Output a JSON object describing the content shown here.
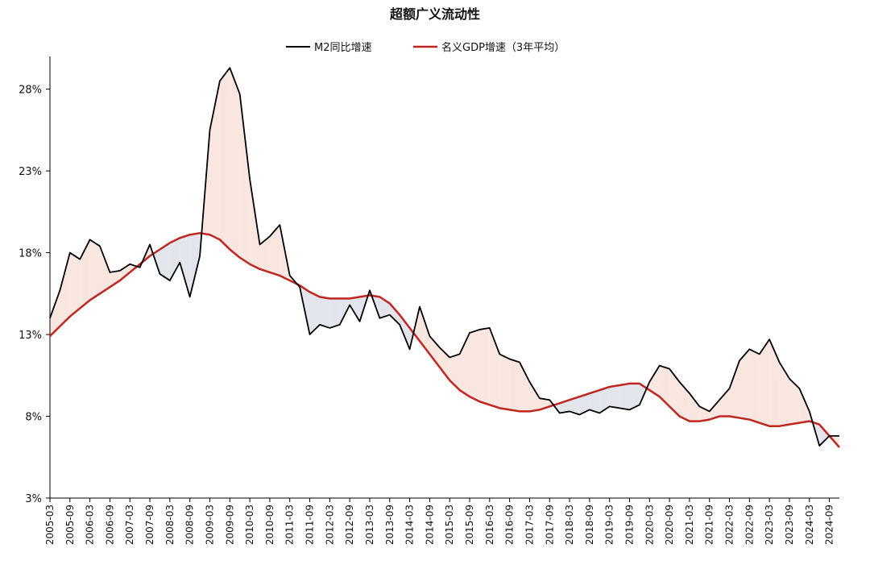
{
  "chart_data": {
    "type": "line",
    "title": "超额广义流动性",
    "legend_position": "top-center",
    "colors": {
      "m2": "#000000",
      "gdp": "#c0261f",
      "fill_excess": "#f9e6e1",
      "fill_deficit": "#e2e5ec"
    },
    "ylim": [
      3,
      30
    ],
    "yticks": [
      3,
      8,
      13,
      18,
      23,
      28
    ],
    "ytick_labels": [
      "3%",
      "8%",
      "13%",
      "18%",
      "23%",
      "28%"
    ],
    "xticks": [
      "2005-03",
      "2005-09",
      "2006-03",
      "2006-09",
      "2007-03",
      "2007-09",
      "2008-03",
      "2008-09",
      "2009-03",
      "2009-09",
      "2010-03",
      "2010-09",
      "2011-03",
      "2011-09",
      "2012-03",
      "2012-09",
      "2013-03",
      "2013-09",
      "2014-03",
      "2014-09",
      "2015-03",
      "2015-09",
      "2016-03",
      "2016-09",
      "2017-03",
      "2017-09",
      "2018-03",
      "2018-09",
      "2019-03",
      "2019-09",
      "2020-03",
      "2020-09",
      "2021-03",
      "2021-09",
      "2022-03",
      "2022-09",
      "2023-03",
      "2023-09",
      "2024-03",
      "2024-09"
    ],
    "grid": false,
    "series": [
      {
        "name": "M2同比增速",
        "quarters": [
          "2005-03",
          "2005-06",
          "2005-09",
          "2005-12",
          "2006-03",
          "2006-06",
          "2006-09",
          "2006-12",
          "2007-03",
          "2007-06",
          "2007-09",
          "2007-12",
          "2008-03",
          "2008-06",
          "2008-09",
          "2008-12",
          "2009-03",
          "2009-06",
          "2009-09",
          "2009-12",
          "2010-03",
          "2010-06",
          "2010-09",
          "2010-12",
          "2011-03",
          "2011-06",
          "2011-09",
          "2011-12",
          "2012-03",
          "2012-06",
          "2012-09",
          "2012-12",
          "2013-03",
          "2013-06",
          "2013-09",
          "2013-12",
          "2014-03",
          "2014-06",
          "2014-09",
          "2014-12",
          "2015-03",
          "2015-06",
          "2015-09",
          "2015-12",
          "2016-03",
          "2016-06",
          "2016-09",
          "2016-12",
          "2017-03",
          "2017-06",
          "2017-09",
          "2017-12",
          "2018-03",
          "2018-06",
          "2018-09",
          "2018-12",
          "2019-03",
          "2019-06",
          "2019-09",
          "2019-12",
          "2020-03",
          "2020-06",
          "2020-09",
          "2020-12",
          "2021-03",
          "2021-06",
          "2021-09",
          "2021-12",
          "2022-03",
          "2022-06",
          "2022-09",
          "2022-12",
          "2023-03",
          "2023-06",
          "2023-09",
          "2023-12",
          "2024-03",
          "2024-06",
          "2024-09",
          "2024-12"
        ],
        "values": [
          14.0,
          15.7,
          18.0,
          17.6,
          18.8,
          18.4,
          16.8,
          16.9,
          17.3,
          17.1,
          18.5,
          16.7,
          16.3,
          17.4,
          15.3,
          17.8,
          25.5,
          28.5,
          29.3,
          27.7,
          22.5,
          18.5,
          19.0,
          19.7,
          16.6,
          15.9,
          13.0,
          13.6,
          13.4,
          13.6,
          14.8,
          13.8,
          15.7,
          14.0,
          14.2,
          13.6,
          12.1,
          14.7,
          12.9,
          12.2,
          11.6,
          11.8,
          13.1,
          13.3,
          13.4,
          11.8,
          11.5,
          11.3,
          10.1,
          9.1,
          9.0,
          8.2,
          8.3,
          8.1,
          8.4,
          8.2,
          8.6,
          8.5,
          8.4,
          8.7,
          10.1,
          11.1,
          10.9,
          10.1,
          9.4,
          8.6,
          8.3,
          9.0,
          9.7,
          11.4,
          12.1,
          11.8,
          12.7,
          11.3,
          10.3,
          9.7,
          8.3,
          6.2,
          6.8,
          6.8
        ]
      },
      {
        "name": "名义GDP增速（3年平均）",
        "quarters": [
          "2005-03",
          "2005-06",
          "2005-09",
          "2005-12",
          "2006-03",
          "2006-06",
          "2006-09",
          "2006-12",
          "2007-03",
          "2007-06",
          "2007-09",
          "2007-12",
          "2008-03",
          "2008-06",
          "2008-09",
          "2008-12",
          "2009-03",
          "2009-06",
          "2009-09",
          "2009-12",
          "2010-03",
          "2010-06",
          "2010-09",
          "2010-12",
          "2011-03",
          "2011-06",
          "2011-09",
          "2011-12",
          "2012-03",
          "2012-06",
          "2012-09",
          "2012-12",
          "2013-03",
          "2013-06",
          "2013-09",
          "2013-12",
          "2014-03",
          "2014-06",
          "2014-09",
          "2014-12",
          "2015-03",
          "2015-06",
          "2015-09",
          "2015-12",
          "2016-03",
          "2016-06",
          "2016-09",
          "2016-12",
          "2017-03",
          "2017-06",
          "2017-09",
          "2017-12",
          "2018-03",
          "2018-06",
          "2018-09",
          "2018-12",
          "2019-03",
          "2019-06",
          "2019-09",
          "2019-12",
          "2020-03",
          "2020-06",
          "2020-09",
          "2020-12",
          "2021-03",
          "2021-06",
          "2021-09",
          "2021-12",
          "2022-03",
          "2022-06",
          "2022-09",
          "2022-12",
          "2023-03",
          "2023-06",
          "2023-09",
          "2023-12",
          "2024-03",
          "2024-06",
          "2024-09",
          "2024-12"
        ],
        "values": [
          12.9,
          13.5,
          14.1,
          14.6,
          15.1,
          15.5,
          15.9,
          16.3,
          16.8,
          17.3,
          17.8,
          18.2,
          18.6,
          18.9,
          19.1,
          19.2,
          19.1,
          18.8,
          18.2,
          17.7,
          17.3,
          17.0,
          16.8,
          16.6,
          16.3,
          16.0,
          15.6,
          15.3,
          15.2,
          15.2,
          15.2,
          15.3,
          15.4,
          15.3,
          14.9,
          14.2,
          13.4,
          12.6,
          11.8,
          11.0,
          10.2,
          9.6,
          9.2,
          8.9,
          8.7,
          8.5,
          8.4,
          8.3,
          8.3,
          8.4,
          8.6,
          8.8,
          9.0,
          9.2,
          9.4,
          9.6,
          9.8,
          9.9,
          10.0,
          10.0,
          9.6,
          9.2,
          8.6,
          8.0,
          7.7,
          7.7,
          7.8,
          8.0,
          8.0,
          7.9,
          7.8,
          7.6,
          7.4,
          7.4,
          7.5,
          7.6,
          7.7,
          7.5,
          6.8,
          6.1
        ]
      }
    ]
  }
}
